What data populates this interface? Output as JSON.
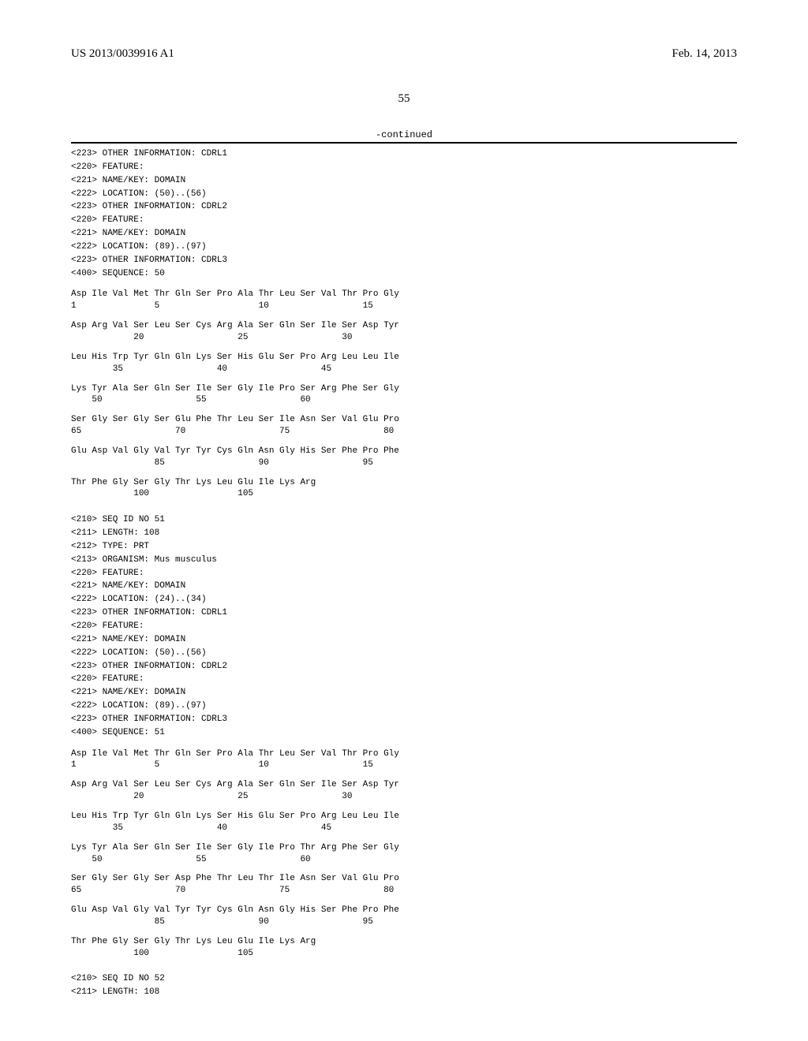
{
  "header": {
    "doc_number": "US 2013/0039916 A1",
    "date": "Feb. 14, 2013"
  },
  "page_number": "55",
  "continued_label": "-continued",
  "seq50_header": [
    "<223> OTHER INFORMATION: CDRL1",
    "<220> FEATURE:",
    "<221> NAME/KEY: DOMAIN",
    "<222> LOCATION: (50)..(56)",
    "<223> OTHER INFORMATION: CDRL2",
    "<220> FEATURE:",
    "<221> NAME/KEY: DOMAIN",
    "<222> LOCATION: (89)..(97)",
    "<223> OTHER INFORMATION: CDRL3",
    "",
    "<400> SEQUENCE: 50"
  ],
  "seq50_rows": [
    {
      "aa": "Asp Ile Val Met Thr Gln Ser Pro Ala Thr Leu Ser Val Thr Pro Gly",
      "nm": "1               5                   10                  15"
    },
    {
      "aa": "Asp Arg Val Ser Leu Ser Cys Arg Ala Ser Gln Ser Ile Ser Asp Tyr",
      "nm": "            20                  25                  30"
    },
    {
      "aa": "Leu His Trp Tyr Gln Gln Lys Ser His Glu Ser Pro Arg Leu Leu Ile",
      "nm": "        35                  40                  45"
    },
    {
      "aa": "Lys Tyr Ala Ser Gln Ser Ile Ser Gly Ile Pro Ser Arg Phe Ser Gly",
      "nm": "    50                  55                  60"
    },
    {
      "aa": "Ser Gly Ser Gly Ser Glu Phe Thr Leu Ser Ile Asn Ser Val Glu Pro",
      "nm": "65                  70                  75                  80"
    },
    {
      "aa": "Glu Asp Val Gly Val Tyr Tyr Cys Gln Asn Gly His Ser Phe Pro Phe",
      "nm": "                85                  90                  95"
    },
    {
      "aa": "Thr Phe Gly Ser Gly Thr Lys Leu Glu Ile Lys Arg",
      "nm": "            100                 105"
    }
  ],
  "seq51_header": [
    "<210> SEQ ID NO 51",
    "<211> LENGTH: 108",
    "<212> TYPE: PRT",
    "<213> ORGANISM: Mus musculus",
    "<220> FEATURE:",
    "<221> NAME/KEY: DOMAIN",
    "<222> LOCATION: (24)..(34)",
    "<223> OTHER INFORMATION: CDRL1",
    "<220> FEATURE:",
    "<221> NAME/KEY: DOMAIN",
    "<222> LOCATION: (50)..(56)",
    "<223> OTHER INFORMATION: CDRL2",
    "<220> FEATURE:",
    "<221> NAME/KEY: DOMAIN",
    "<222> LOCATION: (89)..(97)",
    "<223> OTHER INFORMATION: CDRL3",
    "",
    "<400> SEQUENCE: 51"
  ],
  "seq51_rows": [
    {
      "aa": "Asp Ile Val Met Thr Gln Ser Pro Ala Thr Leu Ser Val Thr Pro Gly",
      "nm": "1               5                   10                  15"
    },
    {
      "aa": "Asp Arg Val Ser Leu Ser Cys Arg Ala Ser Gln Ser Ile Ser Asp Tyr",
      "nm": "            20                  25                  30"
    },
    {
      "aa": "Leu His Trp Tyr Gln Gln Lys Ser His Glu Ser Pro Arg Leu Leu Ile",
      "nm": "        35                  40                  45"
    },
    {
      "aa": "Lys Tyr Ala Ser Gln Ser Ile Ser Gly Ile Pro Thr Arg Phe Ser Gly",
      "nm": "    50                  55                  60"
    },
    {
      "aa": "Ser Gly Ser Gly Ser Asp Phe Thr Leu Thr Ile Asn Ser Val Glu Pro",
      "nm": "65                  70                  75                  80"
    },
    {
      "aa": "Glu Asp Val Gly Val Tyr Tyr Cys Gln Asn Gly His Ser Phe Pro Phe",
      "nm": "                85                  90                  95"
    },
    {
      "aa": "Thr Phe Gly Ser Gly Thr Lys Leu Glu Ile Lys Arg",
      "nm": "            100                 105"
    }
  ],
  "seq52_header": [
    "<210> SEQ ID NO 52",
    "<211> LENGTH: 108"
  ],
  "colors": {
    "text": "#000000",
    "background": "#ffffff",
    "rule": "#000000"
  },
  "fonts": {
    "header_family": "Times New Roman",
    "mono_family": "Courier New",
    "header_size_pt": 11,
    "mono_size_pt": 8
  }
}
